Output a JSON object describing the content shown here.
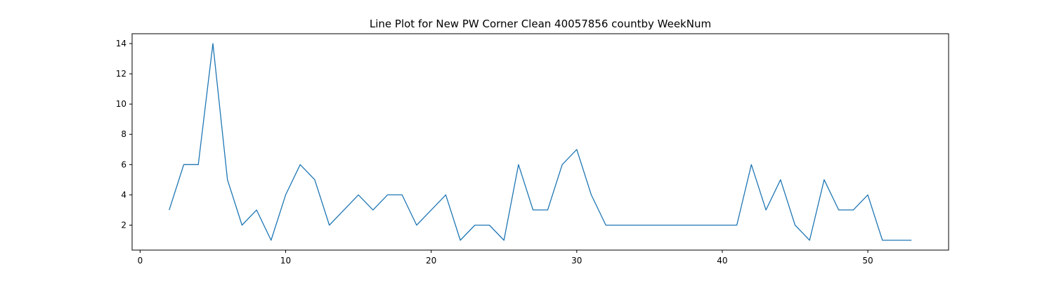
{
  "chart_data": {
    "type": "line",
    "title": "Line Plot for New PW Corner Clean 40057856 countby WeekNum",
    "xlabel": "",
    "ylabel": "",
    "xlim": [
      -0.55,
      55.55
    ],
    "ylim": [
      0.35,
      14.65
    ],
    "xticks": [
      0,
      10,
      20,
      30,
      40,
      50
    ],
    "yticks": [
      2,
      4,
      6,
      8,
      10,
      12,
      14
    ],
    "grid": false,
    "series": [
      {
        "color": "#1f77b4",
        "x": [
          2,
          3,
          4,
          5,
          6,
          7,
          8,
          9,
          10,
          11,
          12,
          13,
          14,
          15,
          16,
          17,
          18,
          19,
          20,
          21,
          22,
          23,
          24,
          25,
          26,
          27,
          28,
          29,
          30,
          31,
          32,
          33,
          34,
          35,
          36,
          37,
          38,
          39,
          40,
          41,
          42,
          43,
          44,
          45,
          46,
          47,
          48,
          49,
          50,
          51,
          52,
          53
        ],
        "y": [
          3,
          6,
          6,
          14,
          5,
          2,
          3,
          1,
          4,
          6,
          5,
          2,
          3,
          4,
          3,
          4,
          4,
          2,
          3,
          4,
          1,
          2,
          2,
          1,
          6,
          3,
          3,
          6,
          7,
          4,
          2,
          2,
          2,
          2,
          2,
          2,
          2,
          2,
          2,
          2,
          6,
          3,
          5,
          2,
          1,
          5,
          3,
          3,
          4,
          1,
          1,
          1
        ]
      }
    ]
  }
}
